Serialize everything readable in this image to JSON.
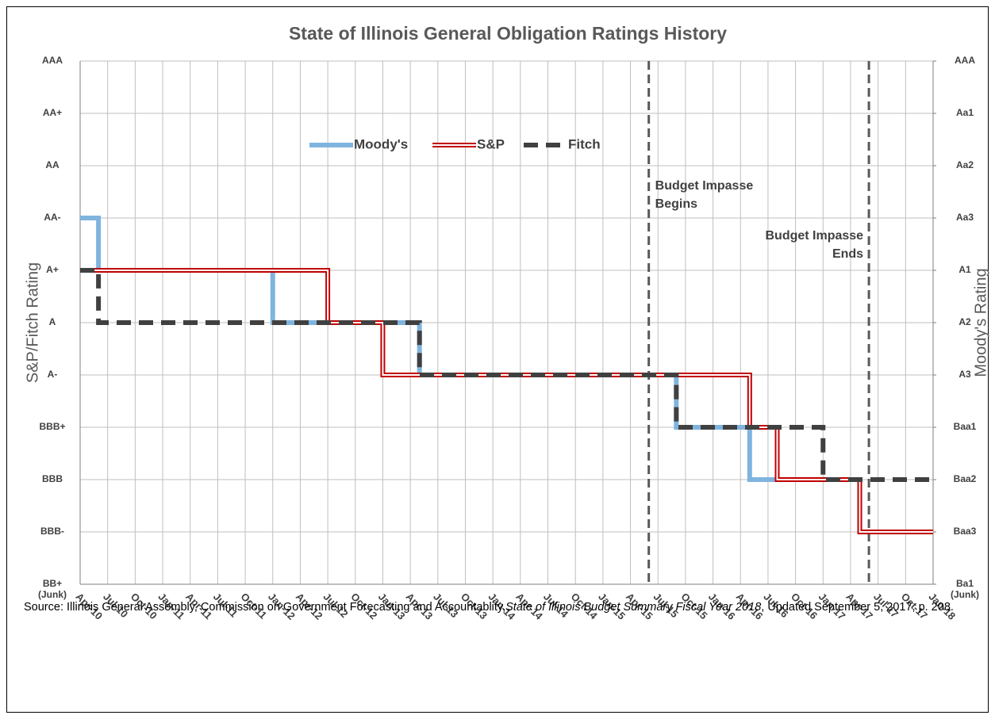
{
  "chart_data": {
    "type": "line",
    "title": "State of Illinois General Obligation Ratings History",
    "y_label": "S&P/Fitch Rating",
    "y2_label": "Moody's Rating",
    "xlim": [
      "Apr-10",
      "Jan-18"
    ],
    "xticks": [
      "Apr-10",
      "Jul-10",
      "Oct-10",
      "Jan-11",
      "Apr-11",
      "Jul-11",
      "Oct-11",
      "Jan-12",
      "Apr-12",
      "Jul-12",
      "Oct-12",
      "Jan-13",
      "Apr-13",
      "Jul-13",
      "Oct-13",
      "Jan-14",
      "Apr-14",
      "Jul-14",
      "Oct-14",
      "Jan-15",
      "Apr-15",
      "Jul-15",
      "Oct-15",
      "Jan-16",
      "Apr-16",
      "Jul-16",
      "Oct-16",
      "Jan-17",
      "Apr-17",
      "Jul-17",
      "Oct-17",
      "Jan-18"
    ],
    "ylim": [
      0,
      10
    ],
    "yticks": [
      {
        "value": 10,
        "label": "AAA"
      },
      {
        "value": 9,
        "label": "AA+"
      },
      {
        "value": 8,
        "label": "AA"
      },
      {
        "value": 7,
        "label": "AA-"
      },
      {
        "value": 6,
        "label": "A+"
      },
      {
        "value": 5,
        "label": "A"
      },
      {
        "value": 4,
        "label": "A-"
      },
      {
        "value": 3,
        "label": "BBB+"
      },
      {
        "value": 2,
        "label": "BBB"
      },
      {
        "value": 1,
        "label": "BBB-"
      },
      {
        "value": 0,
        "label": "BB+\n(Junk)"
      }
    ],
    "y2lim": [
      0,
      10
    ],
    "y2ticks": [
      {
        "value": 10,
        "label": "AAA"
      },
      {
        "value": 9,
        "label": "Aa1"
      },
      {
        "value": 8,
        "label": "Aa2"
      },
      {
        "value": 7,
        "label": "Aa3"
      },
      {
        "value": 6,
        "label": "A1"
      },
      {
        "value": 5,
        "label": "A2"
      },
      {
        "value": 4,
        "label": "A3"
      },
      {
        "value": 3,
        "label": "Baa1"
      },
      {
        "value": 2,
        "label": "Baa2"
      },
      {
        "value": 1,
        "label": "Baa3"
      },
      {
        "value": 0,
        "label": "Ba1\n(Junk)"
      }
    ],
    "grid": true,
    "series": [
      {
        "name": "Moody's",
        "color": "#7fb4df",
        "axis": "y2",
        "x": [
          "Apr-10",
          "Jun-10",
          "Jan-12",
          "May-13",
          "Sep-15",
          "May-16",
          "May-17",
          "Jan-18"
        ],
        "values": [
          7,
          6,
          5,
          4,
          3,
          2,
          1,
          1
        ]
      },
      {
        "name": "S&P",
        "color": "#c00000",
        "x": [
          "Apr-10",
          "Jul-12",
          "Jan-13",
          "May-16",
          "Aug-16",
          "May-17",
          "Jan-18"
        ],
        "values": [
          6,
          5,
          4,
          3,
          2,
          1,
          1
        ]
      },
      {
        "name": "Fitch",
        "color": "#404040",
        "x": [
          "Apr-10",
          "Jun-10",
          "May-13",
          "Sep-15",
          "Jan-17",
          "Jan-18"
        ],
        "values": [
          6,
          5,
          4,
          3,
          2,
          2
        ]
      }
    ],
    "annotations": [
      {
        "x": "Jun-15",
        "text": [
          "Budget Impasse",
          "Begins"
        ]
      },
      {
        "x": "Jun-17",
        "text": [
          "Budget Impasse",
          "Ends"
        ]
      }
    ],
    "source": {
      "text": "Source: Illinois General Assembly, Commission on Government Forecasting and Accountablity,",
      "italic": "State of Illinois Budget Summary Fiscal Year 2018",
      "rest": ", Updated September 5, 2017, p. 208."
    }
  }
}
